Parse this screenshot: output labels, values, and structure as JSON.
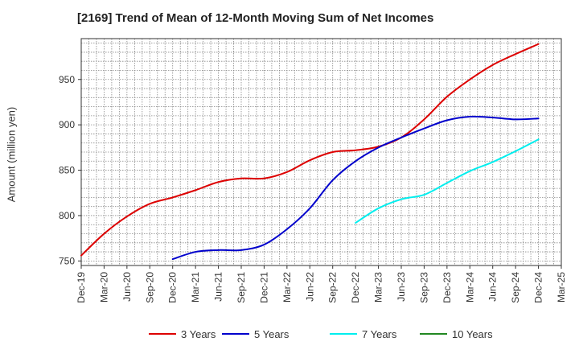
{
  "chart_data": {
    "type": "line",
    "title": "[2169]  Trend of Mean of 12-Month Moving Sum of Net Incomes",
    "ylabel": "Amount (million yen)",
    "xlabel": "",
    "x": [
      "Dec-19",
      "Mar-20",
      "Jun-20",
      "Sep-20",
      "Dec-20",
      "Mar-21",
      "Jun-21",
      "Sep-21",
      "Dec-21",
      "Mar-22",
      "Jun-22",
      "Sep-22",
      "Dec-22",
      "Mar-23",
      "Jun-23",
      "Sep-23",
      "Dec-23",
      "Mar-24",
      "Jun-24",
      "Sep-24",
      "Dec-24",
      "Mar-25"
    ],
    "ylim": [
      745,
      995
    ],
    "yticks": [
      750,
      800,
      850,
      900,
      950
    ],
    "grid": true,
    "legend_position": "bottom",
    "series": [
      {
        "name": "3 Years",
        "color": "#dd0000",
        "values": [
          756,
          780,
          799,
          813,
          820,
          828,
          837,
          841,
          841,
          848,
          861,
          870,
          872,
          876,
          886,
          906,
          931,
          950,
          966,
          978,
          989,
          null
        ]
      },
      {
        "name": "5 Years",
        "color": "#0000cc",
        "values": [
          null,
          null,
          null,
          null,
          752,
          760,
          762,
          762,
          768,
          785,
          808,
          839,
          860,
          875,
          886,
          896,
          905,
          909,
          908,
          906,
          907,
          null
        ]
      },
      {
        "name": "7 Years",
        "color": "#00eeee",
        "values": [
          null,
          null,
          null,
          null,
          null,
          null,
          null,
          null,
          null,
          null,
          null,
          null,
          792,
          808,
          818,
          823,
          836,
          849,
          859,
          871,
          884,
          null
        ]
      },
      {
        "name": "10 Years",
        "color": "#228822",
        "values": [
          null,
          null,
          null,
          null,
          null,
          null,
          null,
          null,
          null,
          null,
          null,
          null,
          null,
          null,
          null,
          null,
          null,
          null,
          null,
          null,
          null,
          null
        ]
      }
    ]
  }
}
